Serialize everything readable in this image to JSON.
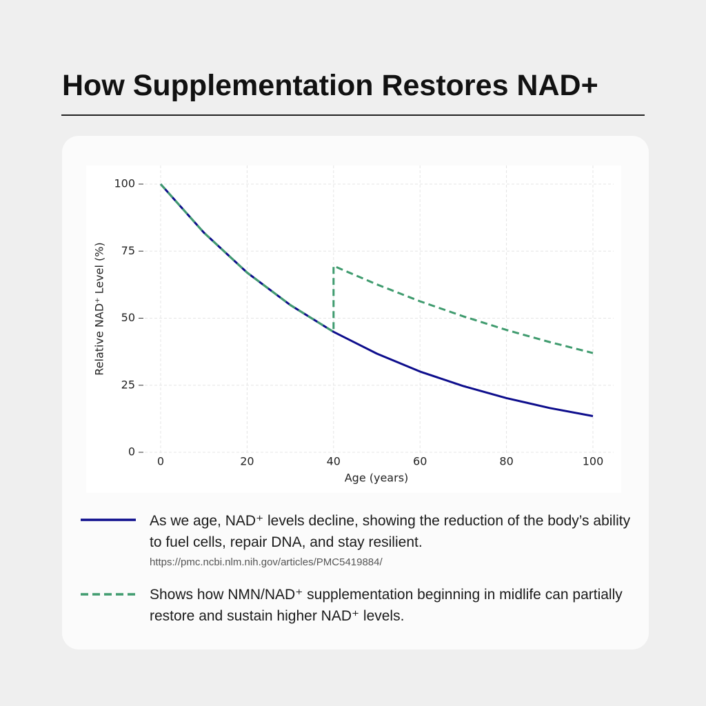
{
  "chart_data": {
    "type": "line",
    "title": "How Supplementation Restores NAD+",
    "x_label": "Age (years)",
    "y_label": "Relative NAD⁺ Level (%)",
    "xlim": [
      0,
      100
    ],
    "ylim": [
      0,
      100
    ],
    "xticks": [
      0,
      20,
      40,
      60,
      80,
      100
    ],
    "yticks": [
      0,
      25,
      50,
      75,
      100
    ],
    "grid": true,
    "series": [
      {
        "name": "As we age, NAD⁺ levels decline, showing the reduction of the body’s ability to fuel cells, repair DNA, and stay resilient.",
        "source": "https://pmc.ncbi.nlm.nih.gov/articles/PMC5419884/",
        "color": "#0d0d8c",
        "dash": "solid",
        "x": [
          0,
          10,
          20,
          30,
          40,
          50,
          60,
          70,
          80,
          90,
          100
        ],
        "values": [
          100,
          81.9,
          67.0,
          54.9,
          44.9,
          36.8,
          30.1,
          24.7,
          20.2,
          16.5,
          13.5
        ]
      },
      {
        "name": "Shows how NMN/NAD⁺ supplementation beginning in midlife can partially restore and sustain higher NAD⁺ levels.",
        "color": "#3f9b6e",
        "dash": "dashed",
        "x": [
          0,
          10,
          20,
          30,
          40,
          40,
          50,
          60,
          70,
          80,
          90,
          100
        ],
        "values": [
          100,
          81.9,
          67.0,
          54.9,
          44.9,
          69.5,
          62.6,
          56.3,
          50.7,
          45.6,
          41.1,
          37.0
        ]
      }
    ]
  }
}
